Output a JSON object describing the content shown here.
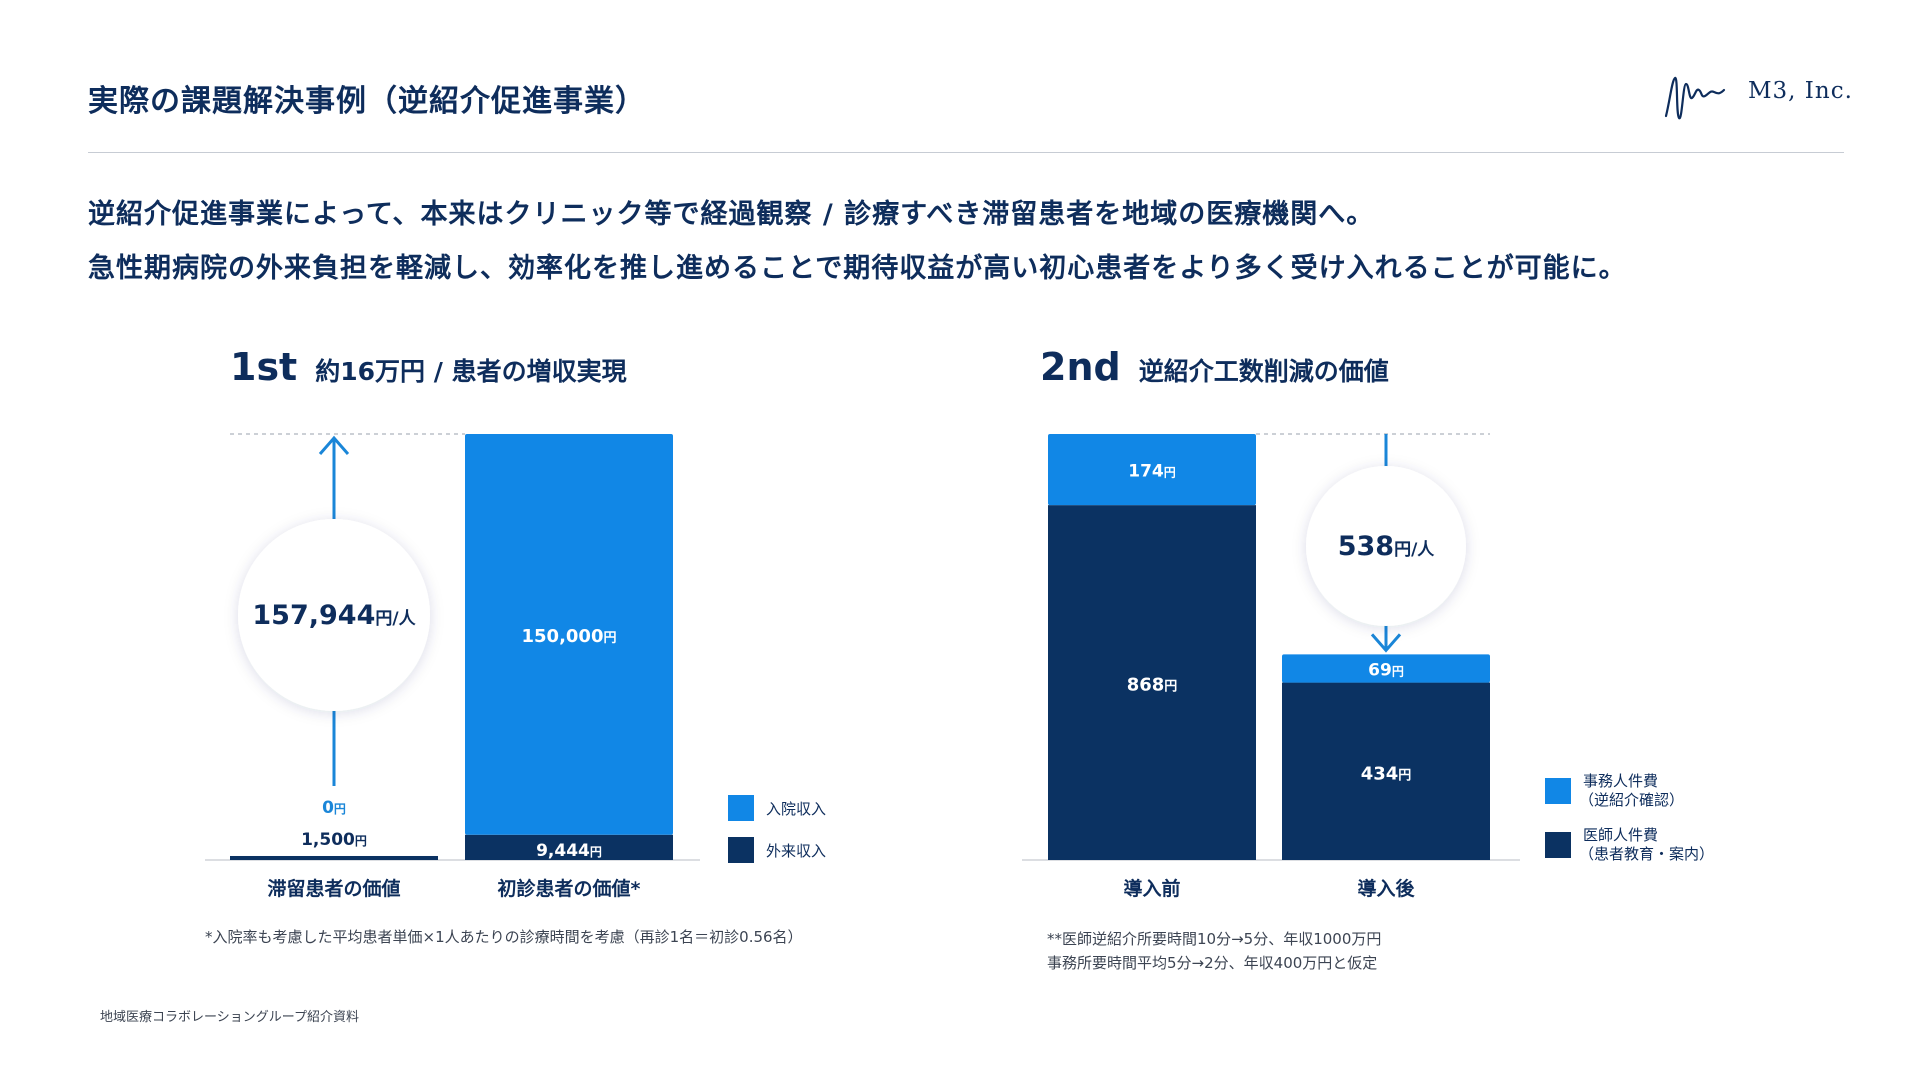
{
  "header": {
    "title": "実際の課題解決事例（逆紹介促進事業）",
    "logo_text": "M3, Inc."
  },
  "lead": {
    "line1": "逆紹介促進事業によって、本来はクリニック等で経過観察 / 診療すべき滞留患者を地域の医療機関へ。",
    "line2": "急性期病院の外来負担を軽減し、効率化を推し進めることで期待収益が高い初心患者をより多く受け入れることが可能に。"
  },
  "colors": {
    "navy": "#0b3262",
    "blue": "#1187e6",
    "text": "#0e2d5c",
    "arrow": "#1a86d8"
  },
  "chart_data": [
    {
      "type": "bar",
      "stacked": true,
      "heading_tag": "1st",
      "heading_text": "約16万円 / 患者の増収実現",
      "categories": [
        "滞留患者の価値",
        "初診患者の価値*"
      ],
      "series": [
        {
          "name": "外来収入",
          "values": [
            1500,
            9444
          ],
          "labels": [
            "1,500円",
            "9,444円"
          ],
          "color": "#0b3262"
        },
        {
          "name": "入院収入",
          "values": [
            0,
            150000
          ],
          "labels": [
            "0円",
            "150,000円"
          ],
          "color": "#1187e6"
        }
      ],
      "legend": [
        "入院収入",
        "外来収入"
      ],
      "legend_position": "right",
      "callout": {
        "value": "157,944",
        "unit": "円/人",
        "direction": "up"
      },
      "ylim": [
        0,
        159444
      ],
      "footnote": "*入院率も考慮した平均患者単価×1人あたりの診療時間を考慮（再診1名＝初診0.56名）"
    },
    {
      "type": "bar",
      "stacked": true,
      "heading_tag": "2nd",
      "heading_text": "逆紹介工数削減の価値",
      "categories": [
        "導入前",
        "導入後"
      ],
      "series": [
        {
          "name": "医師人件費（患者教育・案内）",
          "values": [
            868,
            434
          ],
          "labels": [
            "868円",
            "434円"
          ],
          "color": "#0b3262"
        },
        {
          "name": "事務人件費（逆紹介確認）",
          "values": [
            174,
            69
          ],
          "labels": [
            "174円",
            "69円"
          ],
          "color": "#1187e6"
        }
      ],
      "legend": [
        {
          "line1": "事務人件費",
          "line2": "（逆紹介確認）"
        },
        {
          "line1": "医師人件費",
          "line2": "（患者教育・案内）"
        }
      ],
      "legend_position": "right",
      "callout": {
        "value": "538",
        "unit": "円/人",
        "direction": "down"
      },
      "ylim": [
        0,
        1042
      ],
      "footnote_lines": [
        "**医師逆紹介所要時間10分→5分、年収1000万円",
        "事務所要時間平均5分→2分、年収400万円と仮定"
      ]
    }
  ],
  "source": "地域医療コラボレーショングループ紹介資料"
}
